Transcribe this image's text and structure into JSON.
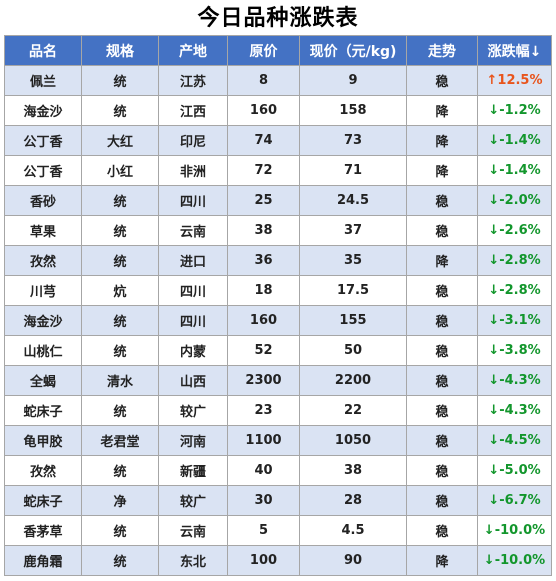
{
  "title": "今日品种涨跌表",
  "columns": [
    "品名",
    "规格",
    "产地",
    "原价",
    "现价（元/kg)",
    "走势",
    "涨跌幅↓"
  ],
  "colors": {
    "header_bg": "#4472c4",
    "stripe_bg": "#dae3f3",
    "up": "#e8541c",
    "down": "#12962c"
  },
  "rows": [
    {
      "name": "佩兰",
      "spec": "统",
      "origin": "江苏",
      "old": "8",
      "new": "9",
      "trend": "稳",
      "change": "↑12.5%",
      "dir": "up"
    },
    {
      "name": "海金沙",
      "spec": "统",
      "origin": "江西",
      "old": "160",
      "new": "158",
      "trend": "降",
      "change": "↓-1.2%",
      "dir": "down"
    },
    {
      "name": "公丁香",
      "spec": "大红",
      "origin": "印尼",
      "old": "74",
      "new": "73",
      "trend": "降",
      "change": "↓-1.4%",
      "dir": "down"
    },
    {
      "name": "公丁香",
      "spec": "小红",
      "origin": "非洲",
      "old": "72",
      "new": "71",
      "trend": "降",
      "change": "↓-1.4%",
      "dir": "down"
    },
    {
      "name": "香砂",
      "spec": "统",
      "origin": "四川",
      "old": "25",
      "new": "24.5",
      "trend": "稳",
      "change": "↓-2.0%",
      "dir": "down"
    },
    {
      "name": "草果",
      "spec": "统",
      "origin": "云南",
      "old": "38",
      "new": "37",
      "trend": "稳",
      "change": "↓-2.6%",
      "dir": "down"
    },
    {
      "name": "孜然",
      "spec": "统",
      "origin": "进口",
      "old": "36",
      "new": "35",
      "trend": "降",
      "change": "↓-2.8%",
      "dir": "down"
    },
    {
      "name": "川芎",
      "spec": "炕",
      "origin": "四川",
      "old": "18",
      "new": "17.5",
      "trend": "稳",
      "change": "↓-2.8%",
      "dir": "down"
    },
    {
      "name": "海金沙",
      "spec": "统",
      "origin": "四川",
      "old": "160",
      "new": "155",
      "trend": "稳",
      "change": "↓-3.1%",
      "dir": "down"
    },
    {
      "name": "山桃仁",
      "spec": "统",
      "origin": "内蒙",
      "old": "52",
      "new": "50",
      "trend": "稳",
      "change": "↓-3.8%",
      "dir": "down"
    },
    {
      "name": "全蝎",
      "spec": "清水",
      "origin": "山西",
      "old": "2300",
      "new": "2200",
      "trend": "稳",
      "change": "↓-4.3%",
      "dir": "down"
    },
    {
      "name": "蛇床子",
      "spec": "统",
      "origin": "较广",
      "old": "23",
      "new": "22",
      "trend": "稳",
      "change": "↓-4.3%",
      "dir": "down"
    },
    {
      "name": "龟甲胶",
      "spec": "老君堂",
      "origin": "河南",
      "old": "1100",
      "new": "1050",
      "trend": "稳",
      "change": "↓-4.5%",
      "dir": "down"
    },
    {
      "name": "孜然",
      "spec": "统",
      "origin": "新疆",
      "old": "40",
      "new": "38",
      "trend": "稳",
      "change": "↓-5.0%",
      "dir": "down"
    },
    {
      "name": "蛇床子",
      "spec": "净",
      "origin": "较广",
      "old": "30",
      "new": "28",
      "trend": "稳",
      "change": "↓-6.7%",
      "dir": "down"
    },
    {
      "name": "香茅草",
      "spec": "统",
      "origin": "云南",
      "old": "5",
      "new": "4.5",
      "trend": "稳",
      "change": "↓-10.0%",
      "dir": "down"
    },
    {
      "name": "鹿角霜",
      "spec": "统",
      "origin": "东北",
      "old": "100",
      "new": "90",
      "trend": "降",
      "change": "↓-10.0%",
      "dir": "down"
    }
  ]
}
